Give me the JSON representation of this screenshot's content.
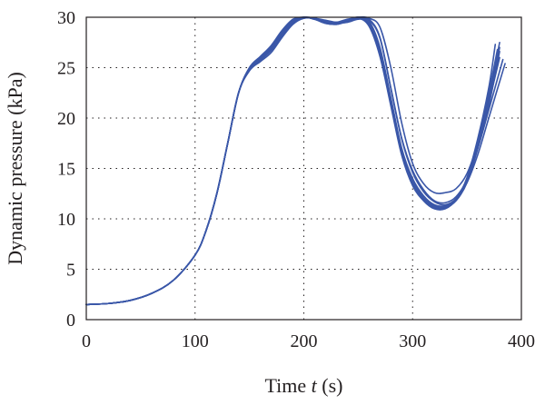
{
  "chart_data": {
    "type": "line",
    "title": "",
    "xlabel": "Time",
    "xlabel_var": "t",
    "xlabel_unit": "(s)",
    "ylabel": "Dynamic pressure (kPa)",
    "xlim": [
      0,
      400
    ],
    "ylim": [
      0,
      30
    ],
    "x_ticks": [
      0,
      100,
      200,
      300,
      400
    ],
    "y_ticks": [
      0,
      5,
      10,
      15,
      20,
      25,
      30
    ],
    "x_tick_labels": [
      "0",
      "100",
      "200",
      "300",
      "400"
    ],
    "y_tick_labels": [
      "0",
      "5",
      "10",
      "15",
      "20",
      "25",
      "30"
    ],
    "grid": true,
    "legend": "none",
    "line_color": "#3a57a8",
    "series": [
      {
        "x": [
          0,
          20,
          40,
          60,
          80,
          100,
          110,
          120,
          130,
          140,
          150,
          160,
          170,
          180,
          190,
          200,
          210,
          220,
          230,
          240,
          250,
          260,
          270,
          280,
          290,
          300,
          310,
          320,
          330,
          340,
          350,
          360,
          370,
          380
        ],
        "y": [
          1.5,
          1.6,
          1.9,
          2.6,
          3.9,
          6.4,
          8.8,
          12.5,
          17.5,
          22.5,
          24.8,
          25.8,
          26.8,
          28.2,
          29.5,
          30.0,
          29.8,
          29.5,
          29.4,
          29.7,
          30.0,
          29.6,
          27.0,
          22.0,
          17.0,
          14.0,
          12.3,
          11.4,
          11.3,
          12.0,
          14.0,
          17.5,
          22.0,
          27.5
        ]
      },
      {
        "x": [
          0,
          20,
          40,
          60,
          80,
          100,
          110,
          120,
          130,
          140,
          150,
          160,
          170,
          180,
          190,
          200,
          210,
          220,
          230,
          240,
          250,
          260,
          270,
          280,
          290,
          300,
          310,
          320,
          330,
          340,
          350,
          360,
          370,
          380
        ],
        "y": [
          1.5,
          1.6,
          1.9,
          2.6,
          3.9,
          6.4,
          8.8,
          12.5,
          17.5,
          22.5,
          24.9,
          26.0,
          27.0,
          28.5,
          29.7,
          30.0,
          29.8,
          29.4,
          29.3,
          29.6,
          29.9,
          29.2,
          26.3,
          21.5,
          16.5,
          13.5,
          11.9,
          11.1,
          11.1,
          11.8,
          13.6,
          17.0,
          21.2,
          26.6
        ]
      },
      {
        "x": [
          0,
          20,
          40,
          60,
          80,
          100,
          110,
          120,
          130,
          140,
          150,
          160,
          170,
          180,
          190,
          200,
          210,
          220,
          230,
          240,
          250,
          260,
          270,
          280,
          290,
          300,
          310,
          320,
          330,
          340,
          350,
          360,
          370,
          380
        ],
        "y": [
          1.5,
          1.6,
          1.9,
          2.6,
          3.9,
          6.4,
          8.8,
          12.5,
          17.5,
          22.5,
          25.0,
          26.1,
          27.2,
          28.7,
          29.8,
          30.0,
          29.9,
          29.6,
          29.5,
          29.8,
          29.9,
          29.3,
          26.6,
          21.8,
          16.8,
          13.8,
          12.1,
          11.3,
          11.2,
          11.9,
          13.8,
          17.2,
          21.6,
          27.0
        ]
      },
      {
        "x": [
          0,
          20,
          40,
          60,
          80,
          100,
          110,
          120,
          130,
          140,
          150,
          160,
          170,
          180,
          190,
          200,
          210,
          220,
          230,
          240,
          250,
          260,
          270,
          280,
          290,
          300,
          310,
          320,
          330,
          340,
          350,
          360,
          370,
          383
        ],
        "y": [
          1.5,
          1.6,
          1.9,
          2.6,
          3.9,
          6.4,
          8.8,
          12.5,
          17.5,
          22.5,
          24.7,
          25.6,
          26.5,
          28.0,
          29.3,
          29.9,
          29.9,
          29.7,
          29.5,
          29.6,
          29.9,
          29.8,
          28.0,
          23.0,
          18.0,
          14.8,
          12.9,
          11.8,
          11.6,
          12.2,
          13.9,
          17.0,
          20.8,
          25.8
        ]
      },
      {
        "x": [
          0,
          20,
          40,
          60,
          80,
          100,
          110,
          120,
          130,
          140,
          150,
          160,
          170,
          180,
          190,
          200,
          210,
          220,
          230,
          240,
          250,
          260,
          270,
          280,
          290,
          300,
          310,
          320,
          330,
          340,
          350,
          360,
          370,
          385
        ],
        "y": [
          1.5,
          1.6,
          1.9,
          2.6,
          3.9,
          6.4,
          8.8,
          12.5,
          17.5,
          22.5,
          24.7,
          25.7,
          26.7,
          28.1,
          29.4,
          29.9,
          29.9,
          29.6,
          29.4,
          29.5,
          29.8,
          29.7,
          27.9,
          22.9,
          17.9,
          14.6,
          12.7,
          11.7,
          11.4,
          12.0,
          13.6,
          16.4,
          20.0,
          25.4
        ]
      },
      {
        "x": [
          0,
          20,
          40,
          60,
          80,
          100,
          110,
          120,
          130,
          140,
          150,
          160,
          170,
          180,
          190,
          200,
          210,
          220,
          230,
          240,
          250,
          260,
          270,
          280,
          290,
          300,
          310,
          320,
          330,
          340,
          350,
          360,
          370,
          378
        ],
        "y": [
          1.5,
          1.6,
          1.9,
          2.6,
          3.9,
          6.4,
          8.8,
          12.5,
          17.5,
          22.5,
          24.9,
          25.9,
          27.0,
          28.4,
          29.6,
          30.0,
          29.8,
          29.5,
          29.4,
          29.7,
          30.0,
          29.4,
          26.8,
          21.9,
          16.9,
          13.8,
          12.0,
          11.2,
          11.1,
          11.9,
          13.9,
          17.6,
          22.5,
          26.8
        ]
      },
      {
        "x": [
          0,
          20,
          40,
          60,
          80,
          100,
          110,
          120,
          130,
          140,
          150,
          160,
          170,
          180,
          190,
          200,
          210,
          220,
          230,
          240,
          250,
          260,
          270,
          280,
          290,
          300,
          310,
          320,
          330,
          340,
          350,
          360,
          370,
          380
        ],
        "y": [
          1.5,
          1.6,
          1.9,
          2.6,
          3.9,
          6.4,
          8.8,
          12.5,
          17.5,
          22.5,
          24.8,
          25.8,
          26.9,
          28.3,
          29.6,
          30.0,
          29.9,
          29.6,
          29.5,
          29.7,
          30.0,
          29.9,
          29.0,
          25.0,
          19.5,
          15.5,
          13.5,
          12.6,
          12.6,
          13.0,
          14.5,
          17.5,
          21.5,
          26.0
        ]
      },
      {
        "x": [
          0,
          20,
          40,
          60,
          80,
          100,
          110,
          120,
          130,
          140,
          150,
          160,
          170,
          180,
          190,
          200,
          210,
          220,
          230,
          240,
          250,
          260,
          270,
          280,
          290,
          300,
          310,
          320,
          330,
          340,
          350,
          360,
          370,
          376
        ],
        "y": [
          1.5,
          1.6,
          1.9,
          2.6,
          3.9,
          6.4,
          8.8,
          12.5,
          17.5,
          22.5,
          25.0,
          26.1,
          27.1,
          28.6,
          29.7,
          30.0,
          29.8,
          29.4,
          29.3,
          29.6,
          29.9,
          29.1,
          26.1,
          21.2,
          16.3,
          13.3,
          11.8,
          11.0,
          11.0,
          11.9,
          14.1,
          18.0,
          23.0,
          27.3
        ]
      }
    ]
  }
}
